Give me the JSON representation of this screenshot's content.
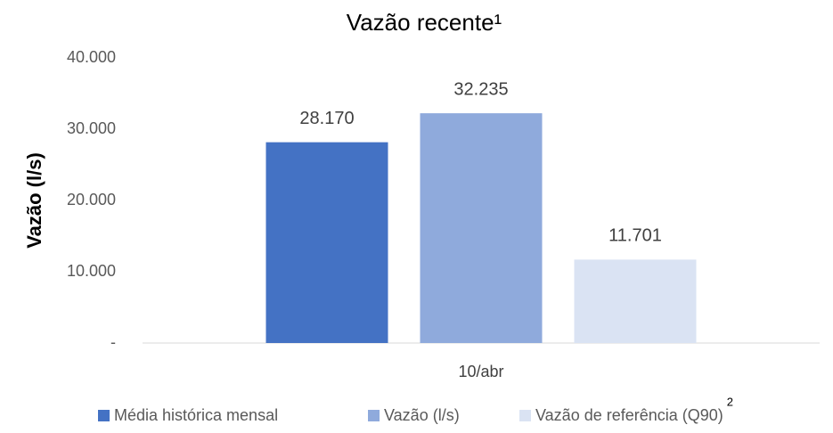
{
  "chart_data": {
    "type": "bar",
    "title": "Vazão recente¹",
    "y_label": "Vazão (l/s)",
    "categories": [
      "10/abr"
    ],
    "series": [
      {
        "name": "Média histórica mensal",
        "color": "#4472c4",
        "values": [
          28170
        ],
        "value_labels": [
          "28.170"
        ]
      },
      {
        "name": "Vazão (l/s)",
        "color": "#8faadc",
        "values": [
          32235
        ],
        "value_labels": [
          "32.235"
        ]
      },
      {
        "name": "Vazão de referência (Q90)",
        "color": "#dae3f3",
        "values": [
          11701
        ],
        "value_labels": [
          "11.701"
        ]
      }
    ],
    "legend_superscript": "2",
    "ylim": [
      0,
      40000
    ],
    "yticks": [
      {
        "value": 0,
        "label": "-"
      },
      {
        "value": 10000,
        "label": "10.000"
      },
      {
        "value": 20000,
        "label": "20.000"
      },
      {
        "value": 30000,
        "label": "30.000"
      },
      {
        "value": 40000,
        "label": "40.000"
      }
    ],
    "grid": false,
    "legend": "bottom"
  }
}
